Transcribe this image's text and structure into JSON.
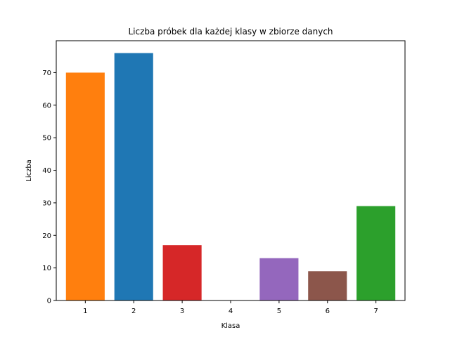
{
  "chart_data": {
    "type": "bar",
    "title": "Liczba próbek dla każdej klasy w zbiorze danych",
    "xlabel": "Klasa",
    "ylabel": "Liczba",
    "categories": [
      "1",
      "2",
      "3",
      "4",
      "5",
      "6",
      "7"
    ],
    "values": [
      70,
      76,
      17,
      0,
      13,
      9,
      29
    ],
    "colors": [
      "#ff7f0e",
      "#1f77b4",
      "#d62728",
      "#2ca02c",
      "#9467bd",
      "#8c564b",
      "#2ca02c"
    ],
    "ylim": [
      0,
      79.8
    ],
    "yticks": [
      0,
      10,
      20,
      30,
      40,
      50,
      60,
      70
    ],
    "grid": false,
    "legend": "none"
  }
}
